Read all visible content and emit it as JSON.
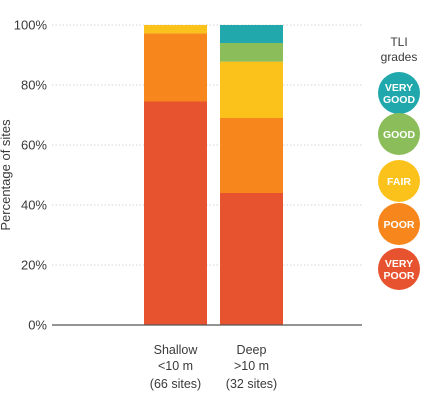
{
  "chart_data": {
    "type": "bar",
    "stacked": true,
    "ylabel": "Percentage of sites",
    "ylim": [
      0,
      100
    ],
    "yticks": [
      "0%",
      "20%",
      "40%",
      "60%",
      "80%",
      "100%"
    ],
    "categories": [
      {
        "lines": [
          "Shallow",
          "<10 m"
        ],
        "note": "(66 sites)"
      },
      {
        "lines": [
          "Deep",
          ">10 m"
        ],
        "note": "(32 sites)"
      }
    ],
    "series": [
      {
        "name": "VERY POOR",
        "lines": [
          "VERY",
          "POOR"
        ],
        "color": "#e8532f",
        "values": [
          74.5,
          44
        ]
      },
      {
        "name": "POOR",
        "lines": [
          "POOR"
        ],
        "color": "#f7861d",
        "values": [
          22.7,
          25
        ]
      },
      {
        "name": "FAIR",
        "lines": [
          "FAIR"
        ],
        "color": "#fbc21b",
        "values": [
          2.8,
          18.8
        ]
      },
      {
        "name": "GOOD",
        "lines": [
          "GOOD"
        ],
        "color": "#8bbd5a",
        "values": [
          0,
          6.2
        ]
      },
      {
        "name": "VERY GOOD",
        "lines": [
          "VERY",
          "GOOD"
        ],
        "color": "#21a8ad",
        "values": [
          0,
          6
        ]
      }
    ],
    "grid": true,
    "legend": {
      "title_lines": [
        "TLI",
        "grades"
      ],
      "placement": "right",
      "order": "top-to-bottom: very good to very poor"
    }
  }
}
